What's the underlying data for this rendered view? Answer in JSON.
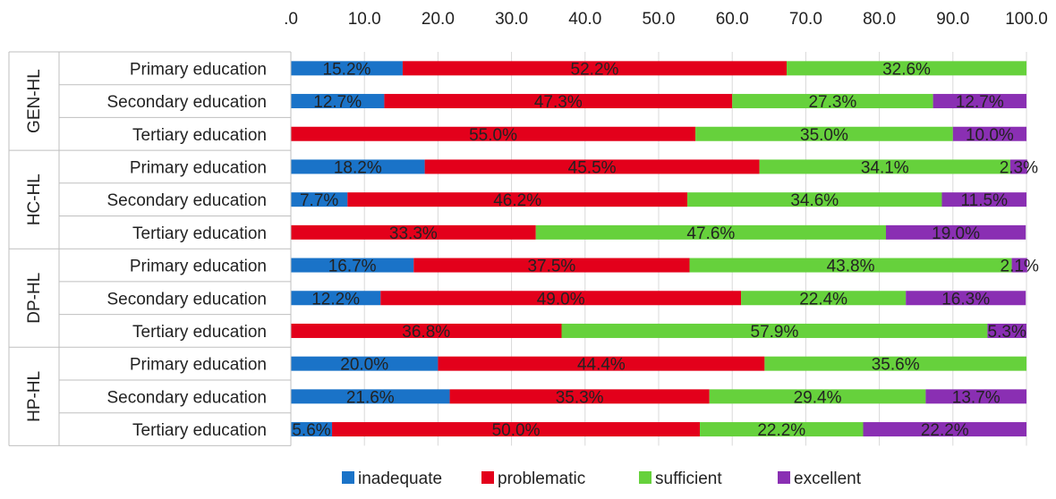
{
  "chart_data": {
    "type": "bar",
    "orientation": "horizontal",
    "stacked": true,
    "xlim": [
      0,
      100
    ],
    "x_ticks": [
      ".0",
      "10.0",
      "20.0",
      "30.0",
      "40.0",
      "50.0",
      "60.0",
      "70.0",
      "80.0",
      "90.0",
      "100.0"
    ],
    "axis_position": "top",
    "grid": true,
    "legend_position": "bottom",
    "colors": {
      "inadequate": "#1a73c8",
      "problematic": "#e3001b",
      "sufficient": "#66d13c",
      "excellent": "#8a2fb3"
    },
    "series_names": [
      "inadequate",
      "problematic",
      "sufficient",
      "excellent"
    ],
    "groups": [
      {
        "name": "GEN-HL",
        "rows": [
          {
            "category": "Primary education",
            "values": [
              15.2,
              52.2,
              32.6,
              0
            ],
            "labels": [
              "15.2%",
              "52.2%",
              "32.6%",
              ""
            ]
          },
          {
            "category": "Secondary education",
            "values": [
              12.7,
              47.3,
              27.3,
              12.7
            ],
            "labels": [
              "12.7%",
              "47.3%",
              "27.3%",
              "12.7%"
            ]
          },
          {
            "category": "Tertiary education",
            "values": [
              0,
              55.0,
              35.0,
              10.0
            ],
            "labels": [
              "",
              "55.0%",
              "35.0%",
              "10.0%"
            ]
          }
        ]
      },
      {
        "name": "HC-HL",
        "rows": [
          {
            "category": "Primary education",
            "values": [
              18.2,
              45.5,
              34.1,
              2.3
            ],
            "labels": [
              "18.2%",
              "45.5%",
              "34.1%",
              "2.3%"
            ]
          },
          {
            "category": "Secondary education",
            "values": [
              7.7,
              46.2,
              34.6,
              11.5
            ],
            "labels": [
              "7.7%",
              "46.2%",
              "34.6%",
              "11.5%"
            ]
          },
          {
            "category": "Tertiary education",
            "values": [
              0,
              33.3,
              47.6,
              19.0
            ],
            "labels": [
              "",
              "33.3%",
              "47.6%",
              "19.0%"
            ]
          }
        ]
      },
      {
        "name": "DP-HL",
        "rows": [
          {
            "category": "Primary education",
            "values": [
              16.7,
              37.5,
              43.8,
              2.1
            ],
            "labels": [
              "16.7%",
              "37.5%",
              "43.8%",
              "2.1%"
            ]
          },
          {
            "category": "Secondary education",
            "values": [
              12.2,
              49.0,
              22.4,
              16.3
            ],
            "labels": [
              "12.2%",
              "49.0%",
              "22.4%",
              "16.3%"
            ]
          },
          {
            "category": "Tertiary education",
            "values": [
              0,
              36.8,
              57.9,
              5.3
            ],
            "labels": [
              "",
              "36.8%",
              "57.9%",
              "5.3%"
            ]
          }
        ]
      },
      {
        "name": "HP-HL",
        "rows": [
          {
            "category": "Primary education",
            "values": [
              20.0,
              44.4,
              35.6,
              0
            ],
            "labels": [
              "20.0%",
              "44.4%",
              "35.6%",
              ""
            ]
          },
          {
            "category": "Secondary education",
            "values": [
              21.6,
              35.3,
              29.4,
              13.7
            ],
            "labels": [
              "21.6%",
              "35.3%",
              "29.4%",
              "13.7%"
            ]
          },
          {
            "category": "Tertiary education",
            "values": [
              5.6,
              50.0,
              22.2,
              22.2
            ],
            "labels": [
              "5.6%",
              "50.0%",
              "22.2%",
              "22.2%"
            ]
          }
        ]
      }
    ]
  }
}
